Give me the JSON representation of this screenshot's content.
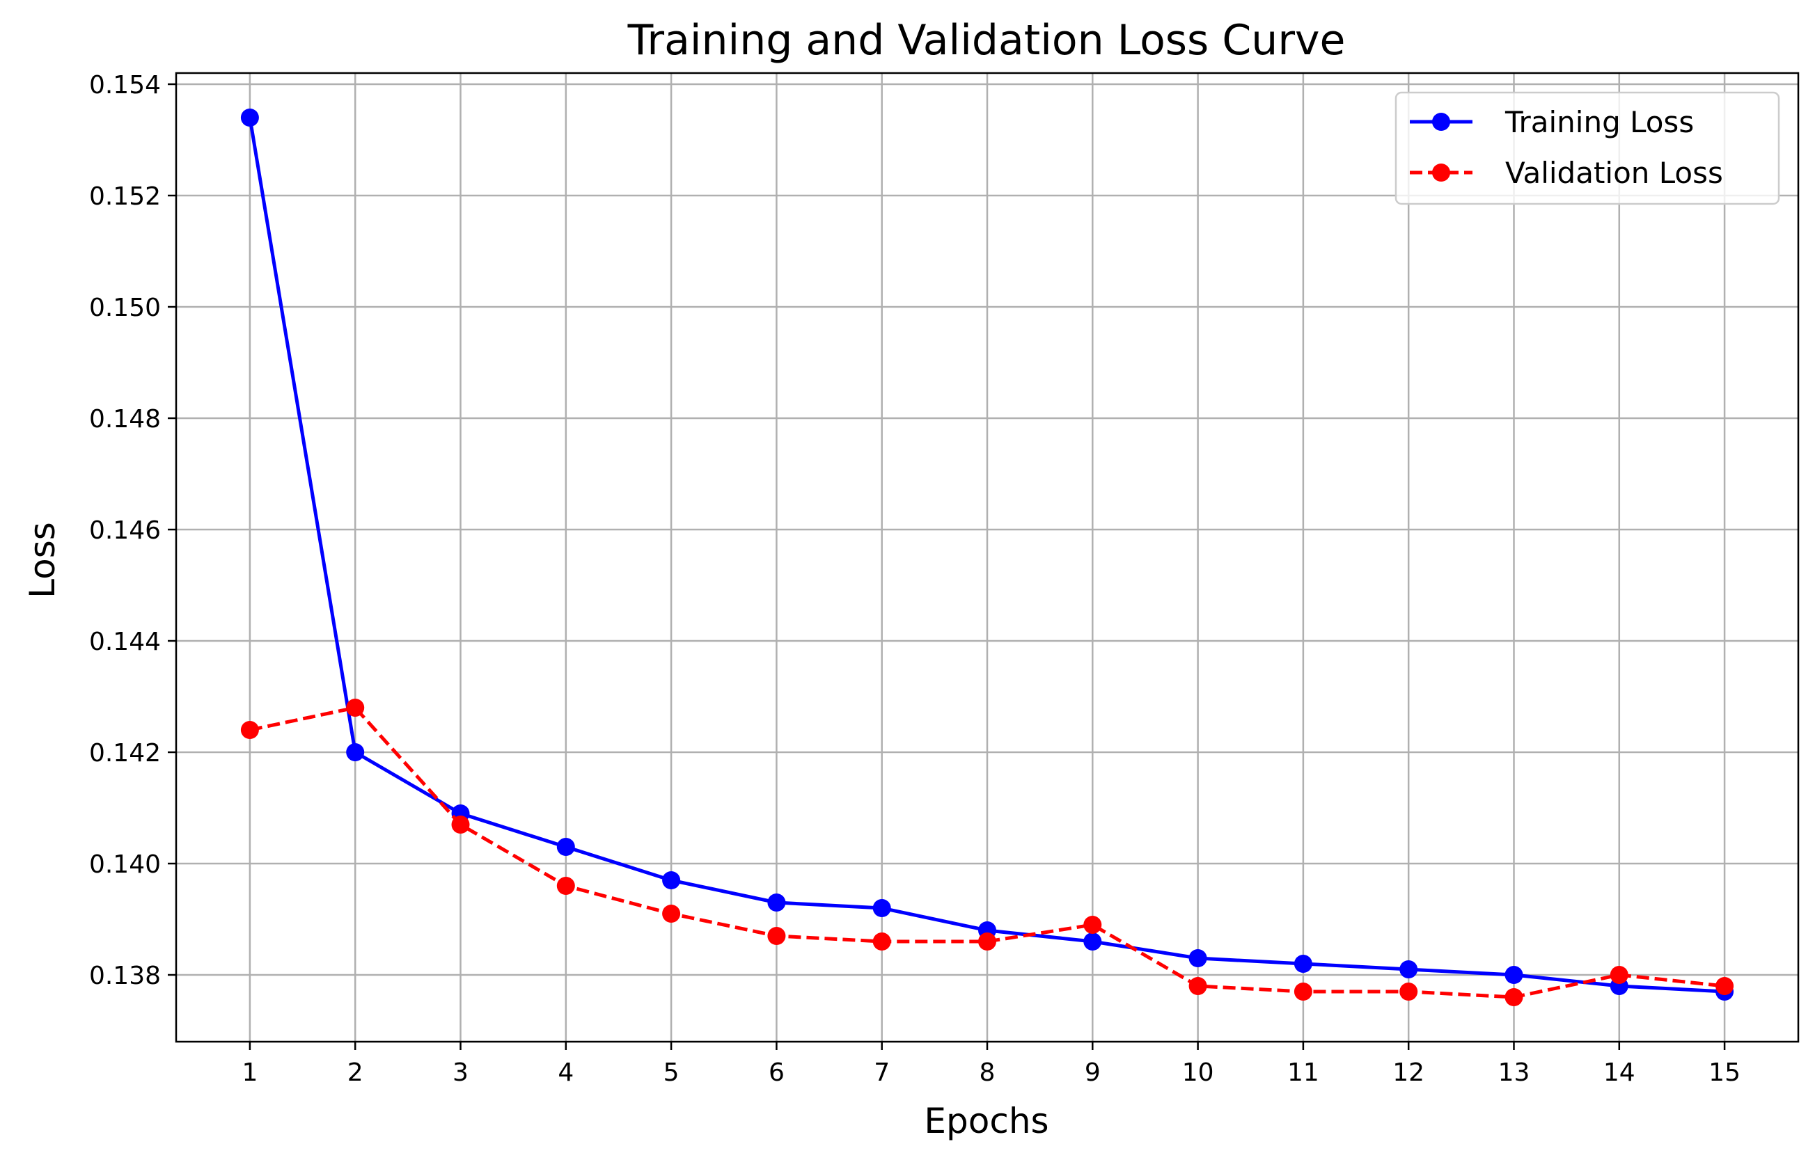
{
  "chart_data": {
    "type": "line",
    "title": "Training and Validation Loss Curve",
    "xlabel": "Epochs",
    "ylabel": "Loss",
    "x": [
      1,
      2,
      3,
      4,
      5,
      6,
      7,
      8,
      9,
      10,
      11,
      12,
      13,
      14,
      15
    ],
    "xlim": [
      0.3,
      15.7
    ],
    "ylim": [
      0.1368,
      0.1542
    ],
    "yticks": [
      0.138,
      0.14,
      0.142,
      0.144,
      0.146,
      0.148,
      0.15,
      0.152,
      0.154
    ],
    "ytick_labels": [
      "0.138",
      "0.140",
      "0.142",
      "0.144",
      "0.146",
      "0.148",
      "0.150",
      "0.152",
      "0.154"
    ],
    "xtick_labels": [
      "1",
      "2",
      "3",
      "4",
      "5",
      "6",
      "7",
      "8",
      "9",
      "10",
      "11",
      "12",
      "13",
      "14",
      "15"
    ],
    "grid": true,
    "legend_position": "top-right",
    "series": [
      {
        "name": "Training Loss",
        "color": "#0000ff",
        "line_style": "solid",
        "marker": "circle",
        "values": [
          0.1534,
          0.142,
          0.1409,
          0.1403,
          0.1397,
          0.1393,
          0.1392,
          0.1388,
          0.1386,
          0.1383,
          0.1382,
          0.1381,
          0.138,
          0.1378,
          0.1377
        ]
      },
      {
        "name": "Validation Loss",
        "color": "#ff0000",
        "line_style": "dashed",
        "marker": "circle",
        "values": [
          0.1424,
          0.1428,
          0.1407,
          0.1396,
          0.1391,
          0.1387,
          0.1386,
          0.1386,
          0.1389,
          0.1378,
          0.1377,
          0.1377,
          0.1376,
          0.138,
          0.1378
        ]
      }
    ]
  }
}
